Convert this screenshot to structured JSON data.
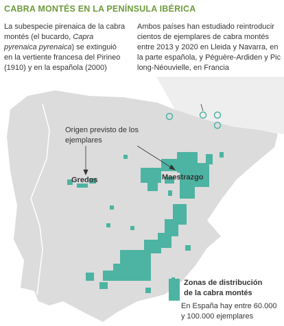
{
  "header": {
    "title": "CABRA MONTÉS EN LA PENÍNSULA IBÉRICA"
  },
  "intro_left": {
    "before": "La subespecie pirenaica de la cabra montés (el bucardo, ",
    "italic": "Capra pyrenaica pyrenaica",
    "after": ") se extinguió en la vertiente francesa del Pirineo (1910) y en la española (2000)"
  },
  "intro_right": "Ambos países han estudiado reintroducir cientos de ejemplares de cabra montés entre 2013 y 2020 en Lleida y Navarra, en la parte española, y Péguère-Ardiden y Pic long-Néouvielle, en Francia",
  "annotation": "Origen previsto de los ejemplares",
  "places": [
    "Gredos",
    "Maestrazgo"
  ],
  "legend": {
    "label": "Zonas de distribución de la cabra montés",
    "note": "En España hay entre 60.000 y 100.000 ejemplares"
  }
}
